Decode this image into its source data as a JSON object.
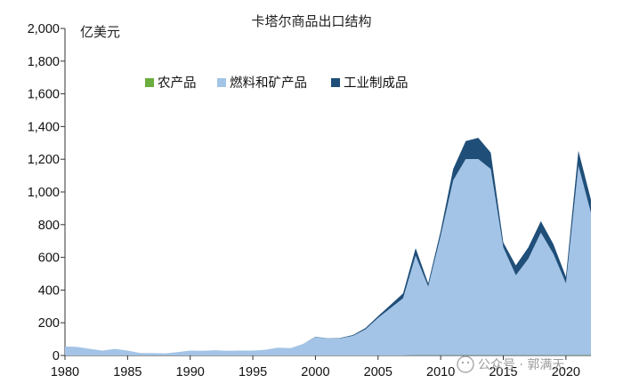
{
  "chart_data": {
    "type": "area",
    "stacked": true,
    "title": "卡塔尔商品出口结构",
    "unit_label": "亿美元",
    "xlabel": "",
    "ylabel": "",
    "xlim": [
      1980,
      2022
    ],
    "ylim": [
      0,
      2000
    ],
    "yticks": [
      "0",
      "200",
      "400",
      "600",
      "800",
      "1,000",
      "1,200",
      "1,400",
      "1,600",
      "1,800",
      "2,000"
    ],
    "ytick_values": [
      0,
      200,
      400,
      600,
      800,
      1000,
      1200,
      1400,
      1600,
      1800,
      2000
    ],
    "xticks": [
      "1980",
      "1985",
      "1990",
      "1995",
      "2000",
      "2005",
      "2010",
      "2015",
      "2020"
    ],
    "xtick_values": [
      1980,
      1985,
      1990,
      1995,
      2000,
      2005,
      2010,
      2015,
      2020
    ],
    "legend_position": "top",
    "x": [
      1980,
      1981,
      1982,
      1983,
      1984,
      1985,
      1986,
      1987,
      1988,
      1989,
      1990,
      1991,
      1992,
      1993,
      1994,
      1995,
      1996,
      1997,
      1998,
      1999,
      2000,
      2001,
      2002,
      2003,
      2004,
      2005,
      2006,
      2007,
      2008,
      2009,
      2010,
      2011,
      2012,
      2013,
      2014,
      2015,
      2016,
      2017,
      2018,
      2019,
      2020,
      2021,
      2022
    ],
    "series": [
      {
        "name": "农产品",
        "color": "#6aae3e",
        "values": [
          0,
          0,
          0,
          0,
          0,
          0,
          0,
          0,
          0,
          0,
          0,
          0,
          0,
          0,
          0,
          0,
          0,
          0,
          0,
          0,
          0,
          0,
          0,
          0,
          0,
          0,
          0,
          0,
          1,
          1,
          1,
          1,
          1,
          1,
          1,
          1,
          1,
          1,
          1,
          1,
          1,
          2,
          2
        ]
      },
      {
        "name": "燃料和矿产品",
        "color": "#a3c4e6",
        "values": [
          55,
          52,
          40,
          30,
          40,
          30,
          15,
          14,
          13,
          20,
          30,
          28,
          32,
          28,
          30,
          30,
          35,
          48,
          45,
          70,
          112,
          103,
          105,
          120,
          160,
          230,
          290,
          350,
          610,
          420,
          730,
          1070,
          1200,
          1200,
          1140,
          660,
          490,
          590,
          750,
          620,
          440,
          1160,
          870
        ]
      },
      {
        "name": "工业制成品",
        "color": "#1f4e79",
        "values": [
          0,
          0,
          0,
          0,
          0,
          0,
          0,
          0,
          0,
          0,
          0,
          0,
          0,
          0,
          0,
          0,
          0,
          0,
          0,
          0,
          2,
          2,
          2,
          5,
          8,
          10,
          20,
          30,
          45,
          20,
          30,
          70,
          110,
          130,
          100,
          30,
          60,
          70,
          70,
          60,
          40,
          90,
          80
        ]
      }
    ]
  },
  "watermark": "公众号 · 郭满天"
}
